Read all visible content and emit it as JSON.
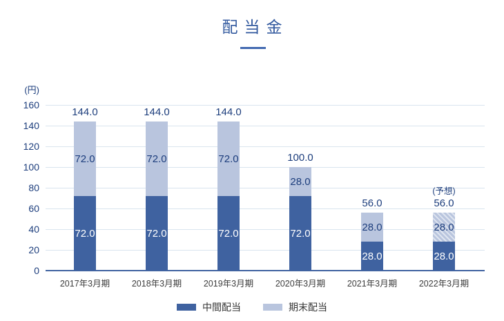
{
  "title": "配当金",
  "y_axis": {
    "unit_label": "(円)",
    "tick_labels": [
      "0",
      "20",
      "40",
      "60",
      "80",
      "100",
      "120",
      "140",
      "160"
    ]
  },
  "legend": [
    {
      "label": "中間配当",
      "color": "#3f62a0"
    },
    {
      "label": "期末配当",
      "color": "#b9c5de"
    }
  ],
  "colors": {
    "interim_bar": "#3f62a0",
    "yearend_bar": "#b9c5de",
    "hatch_stripe": "#dfe5f0",
    "gridline": "#d9e4ee",
    "axis_line": "#3f62a0",
    "value_text": "#1c3d7c",
    "title_text": "#335a9f",
    "underline": "#4068b0",
    "xlabel_text": "#3c3c3c"
  },
  "chart_data": {
    "type": "bar",
    "stacked": true,
    "title": "配当金",
    "ylabel": "(円)",
    "categories": [
      "2017年3月期",
      "2018年3月期",
      "2019年3月期",
      "2020年3月期",
      "2021年3月期",
      "2022年3月期"
    ],
    "series": [
      {
        "name": "中間配当",
        "color": "#3f62a0",
        "values": [
          72.0,
          72.0,
          72.0,
          72.0,
          28.0,
          28.0
        ]
      },
      {
        "name": "期末配当",
        "color": "#b9c5de",
        "values": [
          72.0,
          72.0,
          72.0,
          28.0,
          28.0,
          28.0
        ]
      }
    ],
    "totals": [
      144.0,
      144.0,
      144.0,
      100.0,
      56.0,
      56.0
    ],
    "forecast_index": 5,
    "forecast_note": "(予想)",
    "ylim": [
      0,
      160
    ],
    "ytick_step": 20,
    "grid": true,
    "legend_position": "bottom"
  }
}
